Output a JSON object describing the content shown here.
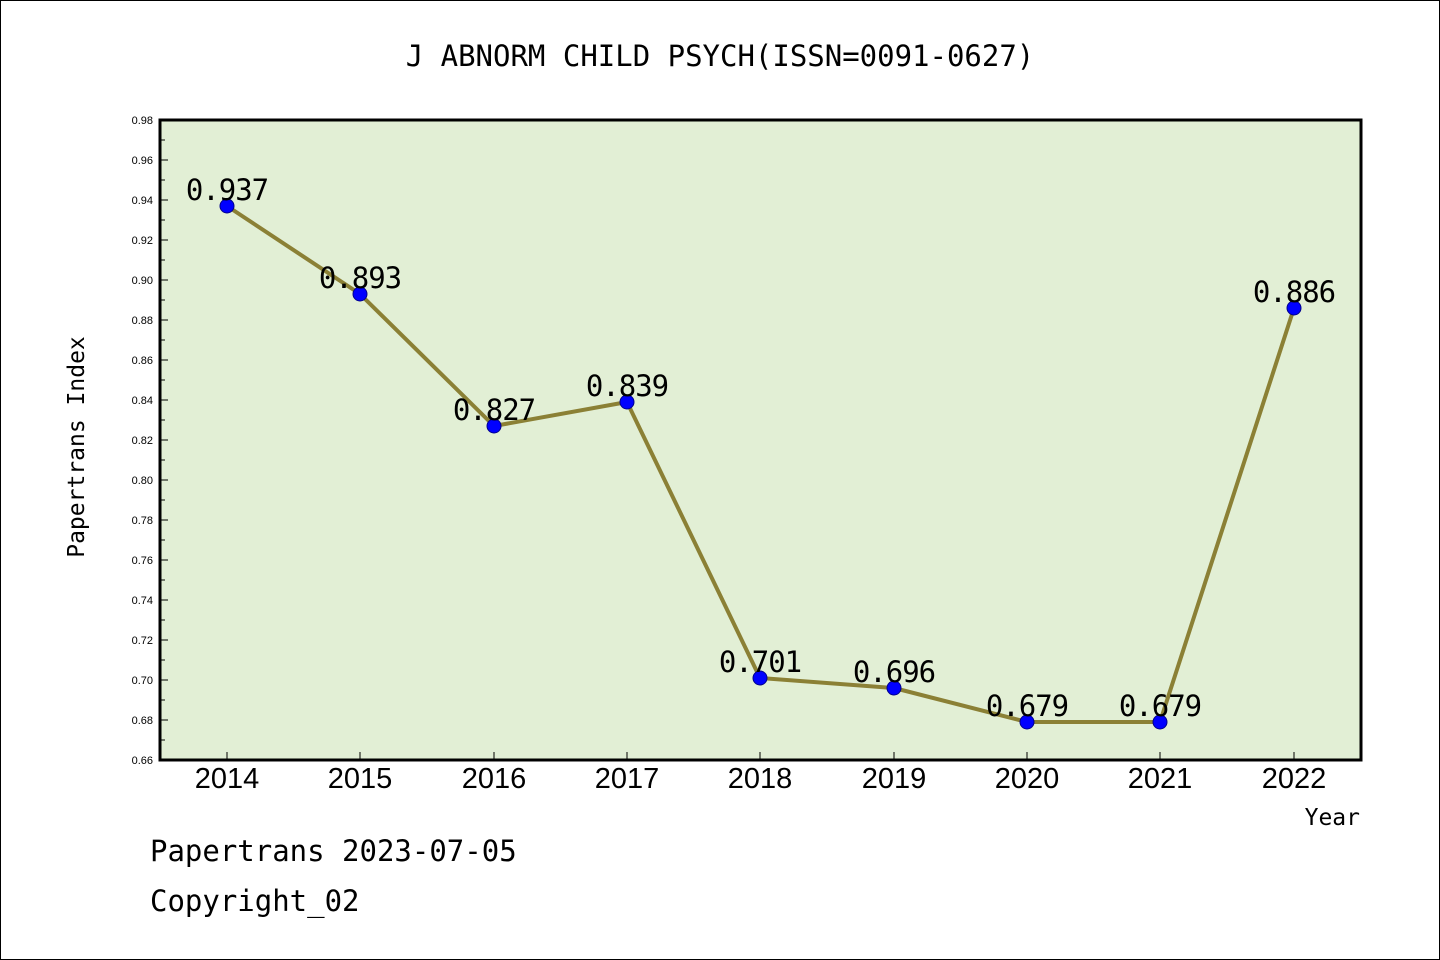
{
  "chart_data": {
    "type": "line",
    "title": "J ABNORM CHILD PSYCH(ISSN=0091-0627)",
    "xlabel": "Year",
    "ylabel": "Papertrans Index",
    "categories": [
      "2014",
      "2015",
      "2016",
      "2017",
      "2018",
      "2019",
      "2020",
      "2021",
      "2022"
    ],
    "series": [
      {
        "values": [
          0.937,
          0.893,
          0.827,
          0.839,
          0.701,
          0.696,
          0.679,
          0.679,
          0.886
        ]
      }
    ],
    "data_labels": [
      "0.937",
      "0.893",
      "0.827",
      "0.839",
      "0.701",
      "0.696",
      "0.679",
      "0.679",
      "0.886"
    ],
    "ylim": [
      0.66,
      0.98
    ],
    "yticks": [
      "0.66",
      "0.68",
      "0.70",
      "0.72",
      "0.74",
      "0.76",
      "0.78",
      "0.80",
      "0.82",
      "0.84",
      "0.86",
      "0.88",
      "0.90",
      "0.92",
      "0.94",
      "0.96",
      "0.98"
    ],
    "grid": false,
    "colors": {
      "plot_bg": "#e2efd5",
      "line": "#8b8035",
      "marker": "#0000ff",
      "axis": "#000000"
    }
  },
  "footer": {
    "source": "Papertrans 2023-07-05",
    "copyright": "Copyright_02"
  }
}
